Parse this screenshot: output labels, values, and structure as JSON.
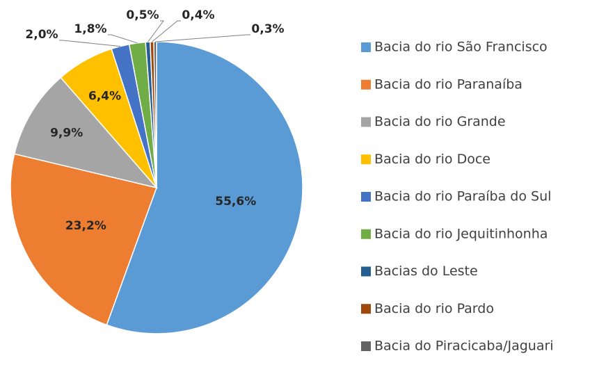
{
  "chart_data": {
    "type": "pie",
    "categories": [
      "Bacia do rio São Francisco",
      "Bacia do rio Paranaíba",
      "Bacia do rio Grande",
      "Bacia do rio Doce",
      "Bacia do rio Paraíba do Sul",
      "Bacia do rio Jequitinhonha",
      "Bacias do Leste",
      "Bacia do rio Pardo",
      "Bacia do Piracicaba/Jaguari"
    ],
    "values": [
      55.6,
      23.2,
      9.9,
      6.4,
      2.0,
      1.8,
      0.5,
      0.4,
      0.3
    ],
    "value_labels": [
      "55,6%",
      "23,2%",
      "9,9%",
      "6,4%",
      "2,0%",
      "1,8%",
      "0,5%",
      "0,4%",
      "0,3%"
    ],
    "colors": [
      "#5b9bd5",
      "#ed7d31",
      "#a5a5a5",
      "#ffc000",
      "#4472c4",
      "#70ad47",
      "#255e91",
      "#9e480e",
      "#636363"
    ],
    "legend": "right"
  }
}
